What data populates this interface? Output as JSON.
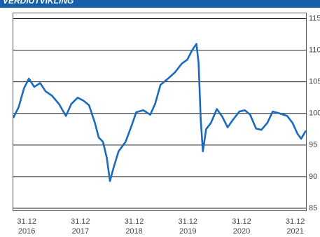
{
  "chart_data": {
    "type": "line",
    "title": "VERDIUTVIKLING",
    "x": [
      2016.75,
      2016.85,
      2016.95,
      2017.04,
      2017.14,
      2017.25,
      2017.35,
      2017.47,
      2017.6,
      2017.73,
      2017.83,
      2017.95,
      2018.06,
      2018.16,
      2018.27,
      2018.34,
      2018.42,
      2018.49,
      2018.55,
      2018.62,
      2018.71,
      2018.84,
      2018.95,
      2019.04,
      2019.17,
      2019.3,
      2019.39,
      2019.49,
      2019.63,
      2019.76,
      2019.89,
      2019.99,
      2020.08,
      2020.16,
      2020.2,
      2020.24,
      2020.28,
      2020.34,
      2020.43,
      2020.54,
      2020.64,
      2020.74,
      2020.84,
      2020.96,
      2021.06,
      2021.16,
      2021.27,
      2021.37,
      2021.48,
      2021.58,
      2021.71,
      2021.85,
      2021.95,
      2022.04,
      2022.11,
      2022.2
    ],
    "series": [
      {
        "color": "#1a6bbd",
        "values": [
          99.3,
          101,
          104,
          105.5,
          104.2,
          104.8,
          103.5,
          102.8,
          101.5,
          99.6,
          101.5,
          102.5,
          102,
          101.3,
          98.5,
          96.2,
          95.5,
          93,
          89.3,
          91.5,
          94,
          95.5,
          98,
          100.2,
          100.5,
          99.8,
          101.5,
          104.5,
          105.5,
          106.5,
          107.9,
          108.5,
          110,
          111,
          108,
          99,
          94,
          97.5,
          98.5,
          100.7,
          99.5,
          97.8,
          99,
          100.3,
          100.5,
          99.8,
          97.6,
          97.4,
          98.5,
          100.3,
          100,
          99.6,
          98.5,
          96.8,
          96,
          97.3
        ]
      }
    ],
    "xlim": [
      2016.75,
      2022.2
    ],
    "xticks": [
      {
        "value": 2017,
        "label": "31.12 2016"
      },
      {
        "value": 2018,
        "label": "31.12 2017"
      },
      {
        "value": 2019,
        "label": "31.12 2018"
      },
      {
        "value": 2020,
        "label": "31.12 2019"
      },
      {
        "value": 2021,
        "label": "31.12 2020"
      },
      {
        "value": 2022,
        "label": "31.12 2021"
      }
    ],
    "ylim": [
      85,
      115.5
    ],
    "yticks": [
      85,
      90,
      95,
      100,
      105,
      110,
      115
    ],
    "grid": true
  }
}
